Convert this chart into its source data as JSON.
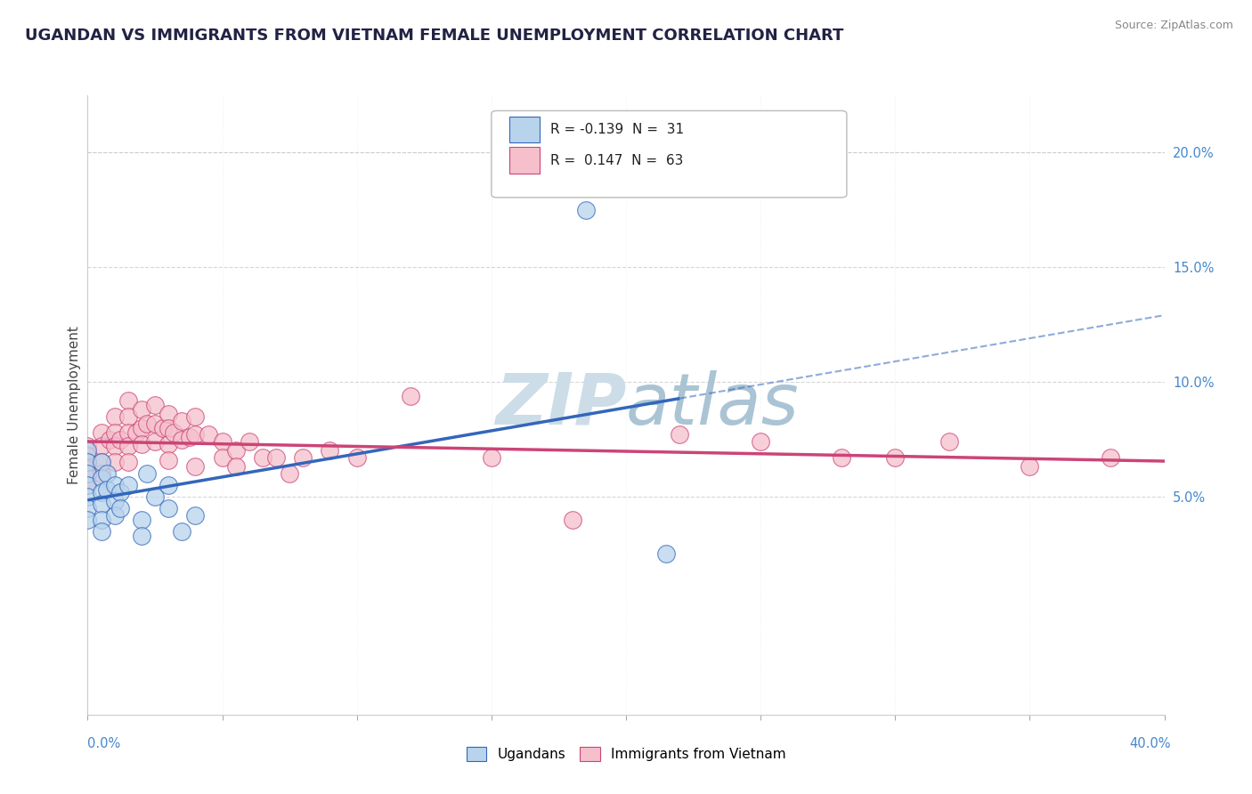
{
  "title": "UGANDAN VS IMMIGRANTS FROM VIETNAM FEMALE UNEMPLOYMENT CORRELATION CHART",
  "source": "Source: ZipAtlas.com",
  "ylabel": "Female Unemployment",
  "xlim": [
    0.0,
    0.4
  ],
  "ylim": [
    -0.045,
    0.225
  ],
  "ugandan_R": -0.139,
  "ugandan_N": 31,
  "vietnam_R": 0.147,
  "vietnam_N": 63,
  "ugandan_color": "#b8d4ec",
  "ugandan_line_color": "#3366bb",
  "vietnam_color": "#f5c0cc",
  "vietnam_line_color": "#cc4477",
  "ugandan_x": [
    0.0,
    0.0,
    0.0,
    0.0,
    0.0,
    0.0,
    0.0,
    0.005,
    0.005,
    0.005,
    0.005,
    0.005,
    0.005,
    0.007,
    0.007,
    0.01,
    0.01,
    0.01,
    0.012,
    0.012,
    0.015,
    0.02,
    0.02,
    0.022,
    0.025,
    0.03,
    0.03,
    0.035,
    0.04,
    0.185,
    0.215
  ],
  "ugandan_y": [
    0.07,
    0.065,
    0.06,
    0.055,
    0.05,
    0.045,
    0.04,
    0.065,
    0.058,
    0.052,
    0.047,
    0.04,
    0.035,
    0.06,
    0.053,
    0.055,
    0.048,
    0.042,
    0.052,
    0.045,
    0.055,
    0.04,
    0.033,
    0.06,
    0.05,
    0.055,
    0.045,
    0.035,
    0.042,
    0.175,
    0.025
  ],
  "vietnam_x": [
    0.0,
    0.0,
    0.0,
    0.0,
    0.0,
    0.0,
    0.005,
    0.005,
    0.005,
    0.005,
    0.008,
    0.01,
    0.01,
    0.01,
    0.01,
    0.012,
    0.015,
    0.015,
    0.015,
    0.015,
    0.015,
    0.018,
    0.02,
    0.02,
    0.02,
    0.022,
    0.025,
    0.025,
    0.025,
    0.028,
    0.03,
    0.03,
    0.03,
    0.03,
    0.032,
    0.035,
    0.035,
    0.038,
    0.04,
    0.04,
    0.04,
    0.045,
    0.05,
    0.05,
    0.055,
    0.055,
    0.06,
    0.065,
    0.07,
    0.075,
    0.08,
    0.09,
    0.1,
    0.12,
    0.15,
    0.18,
    0.22,
    0.25,
    0.28,
    0.3,
    0.32,
    0.35,
    0.38
  ],
  "vietnam_y": [
    0.072,
    0.068,
    0.065,
    0.062,
    0.058,
    0.055,
    0.078,
    0.072,
    0.065,
    0.06,
    0.075,
    0.085,
    0.078,
    0.072,
    0.065,
    0.075,
    0.092,
    0.085,
    0.078,
    0.072,
    0.065,
    0.078,
    0.088,
    0.08,
    0.073,
    0.082,
    0.09,
    0.082,
    0.074,
    0.08,
    0.086,
    0.08,
    0.073,
    0.066,
    0.078,
    0.083,
    0.075,
    0.076,
    0.085,
    0.077,
    0.063,
    0.077,
    0.074,
    0.067,
    0.07,
    0.063,
    0.074,
    0.067,
    0.067,
    0.06,
    0.067,
    0.07,
    0.067,
    0.094,
    0.067,
    0.04,
    0.077,
    0.074,
    0.067,
    0.067,
    0.074,
    0.063,
    0.067
  ],
  "background_color": "#ffffff",
  "grid_color": "#cccccc",
  "title_color": "#222244",
  "right_ytick_vals": [
    0.2,
    0.15,
    0.1,
    0.05
  ],
  "right_ytick_labels": [
    "20.0%",
    "15.0%",
    "10.0%",
    "5.0%"
  ],
  "ugandan_line_x_solid_end": 0.22,
  "ugandan_line_x_dash_end": 0.4
}
